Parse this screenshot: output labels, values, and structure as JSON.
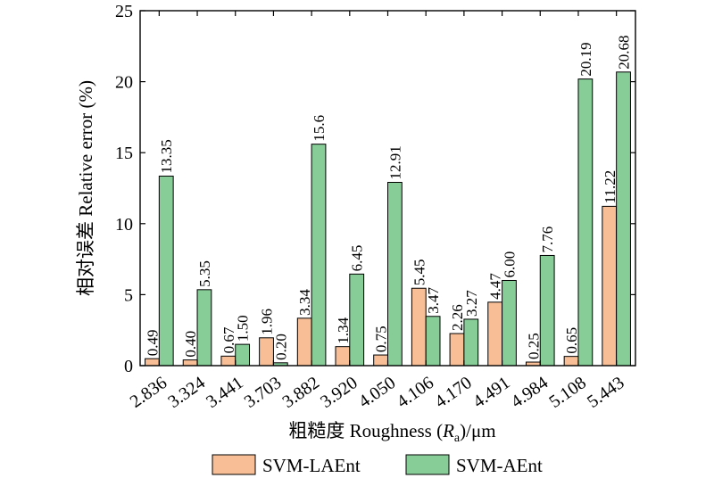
{
  "chart_data": {
    "type": "bar",
    "categories": [
      "2.836",
      "3.324",
      "3.441",
      "3.703",
      "3.882",
      "3.920",
      "4.050",
      "4.106",
      "4.170",
      "4.491",
      "4.984",
      "5.108",
      "5.443"
    ],
    "series": [
      {
        "name": "SVM-LAEnt",
        "color": "#F8BE96",
        "values": [
          0.49,
          0.4,
          0.67,
          1.96,
          3.34,
          1.34,
          0.75,
          5.45,
          2.26,
          4.47,
          0.25,
          0.65,
          11.22
        ],
        "labels": [
          "0.49",
          "0.40",
          "0.67",
          "1.96",
          "3.34",
          "1.34",
          "0.75",
          "5.45",
          "2.26",
          "4.47",
          "0.25",
          "0.65",
          "11.22"
        ]
      },
      {
        "name": "SVM-AEnt",
        "color": "#86CD98",
        "values": [
          13.35,
          5.35,
          1.5,
          0.2,
          15.6,
          6.45,
          12.91,
          3.47,
          3.27,
          6.0,
          7.76,
          20.19,
          20.68
        ],
        "labels": [
          "13.35",
          "5.35",
          "1.50",
          "0.20",
          "15.6",
          "6.45",
          "12.91",
          "3.47",
          "3.27",
          "6.00",
          "7.76",
          "20.19",
          "20.68"
        ]
      }
    ],
    "ylim": [
      0,
      25
    ],
    "yticks": [
      "0",
      "5",
      "10",
      "15",
      "20",
      "25"
    ],
    "ylabel": "相对误差 Relative error (%)",
    "xlabel": {
      "prefix": "粗糙度 Roughness (",
      "var": "R",
      "sub": "a",
      "suffix": ")/μm"
    },
    "legend_position": "bottom",
    "grid": false
  }
}
